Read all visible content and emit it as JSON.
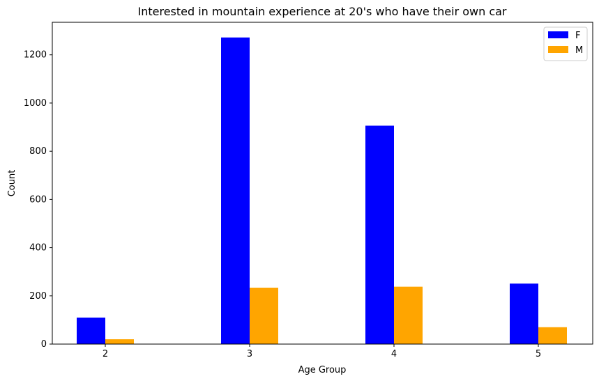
{
  "chart_data": {
    "type": "bar",
    "title": "Interested in mountain experience at 20's who have their own car",
    "xlabel": "Age Group",
    "ylabel": "Count",
    "categories": [
      "2",
      "3",
      "4",
      "5"
    ],
    "ylim": [
      0,
      1335
    ],
    "yticks": [
      "0",
      "200",
      "400",
      "600",
      "800",
      "1000",
      "1200"
    ],
    "grid": false,
    "legend_position": "top-right",
    "series": [
      {
        "name": "F",
        "color": "#0000ff",
        "values": [
          110,
          1272,
          906,
          251
        ]
      },
      {
        "name": "M",
        "color": "#ffa500",
        "values": [
          20,
          234,
          238,
          70
        ]
      }
    ]
  }
}
